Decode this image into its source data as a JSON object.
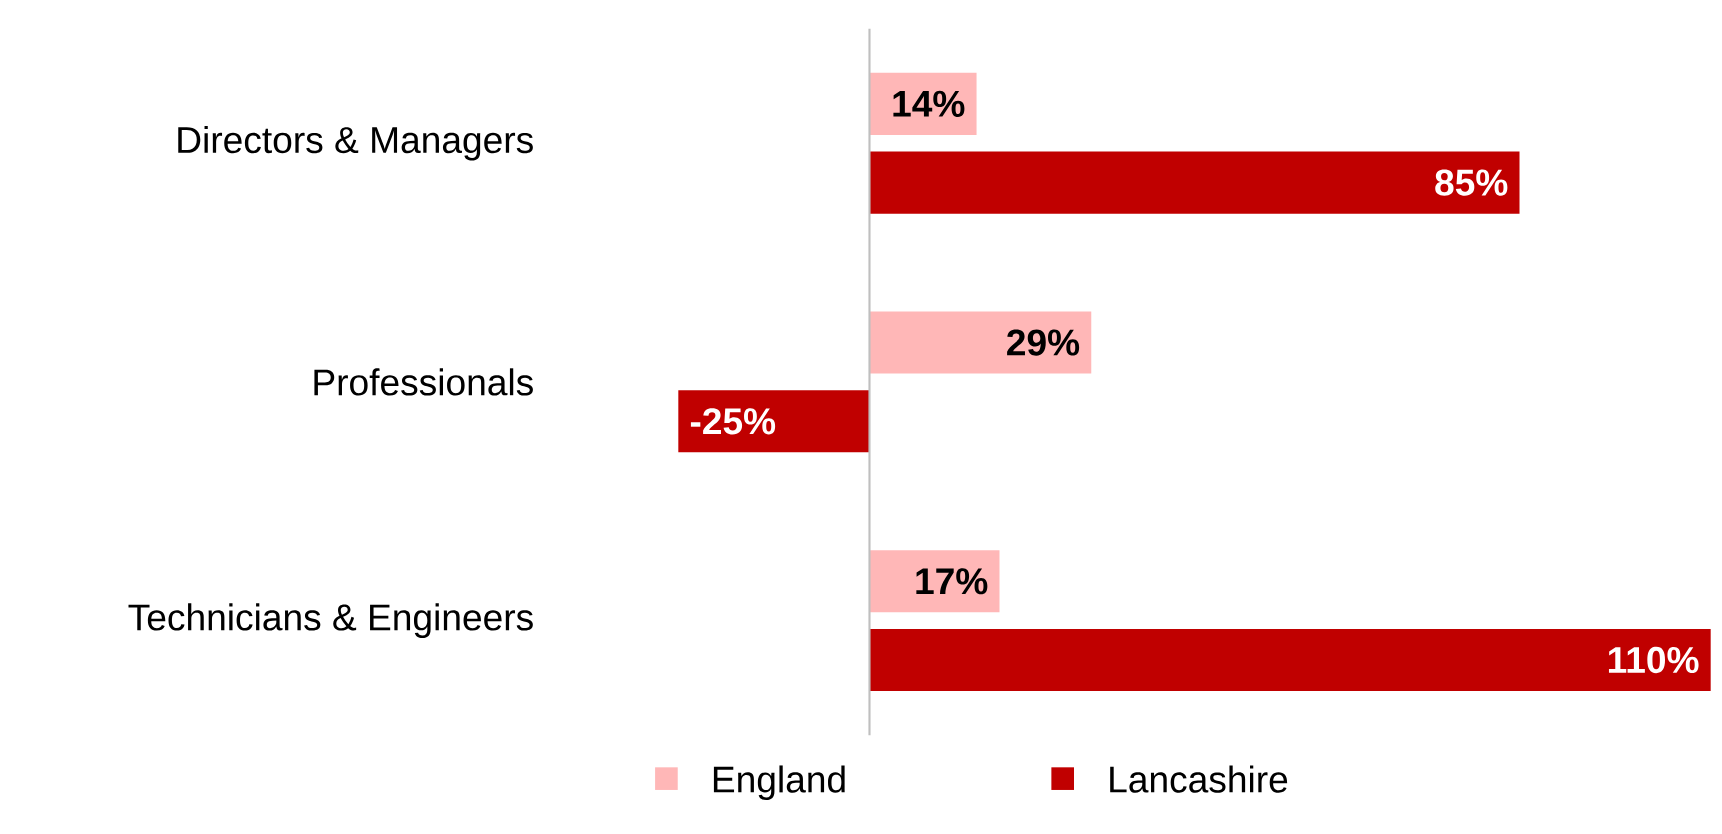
{
  "chart_data": {
    "type": "bar",
    "orientation": "horizontal",
    "categories": [
      "Directors & Managers",
      "Professionals",
      "Technicians & Engineers"
    ],
    "series": [
      {
        "name": "England",
        "color": "#ffb7b7",
        "values": [
          14,
          29,
          17
        ],
        "value_labels": [
          "14%",
          "29%",
          "17%"
        ]
      },
      {
        "name": "Lancashire",
        "color": "#c00000",
        "values": [
          85,
          -25,
          110
        ],
        "value_labels": [
          "85%",
          "-25%",
          "110%"
        ]
      }
    ],
    "xlim": [
      -25,
      110
    ],
    "tick_labels": "y",
    "legend": "bottom"
  }
}
